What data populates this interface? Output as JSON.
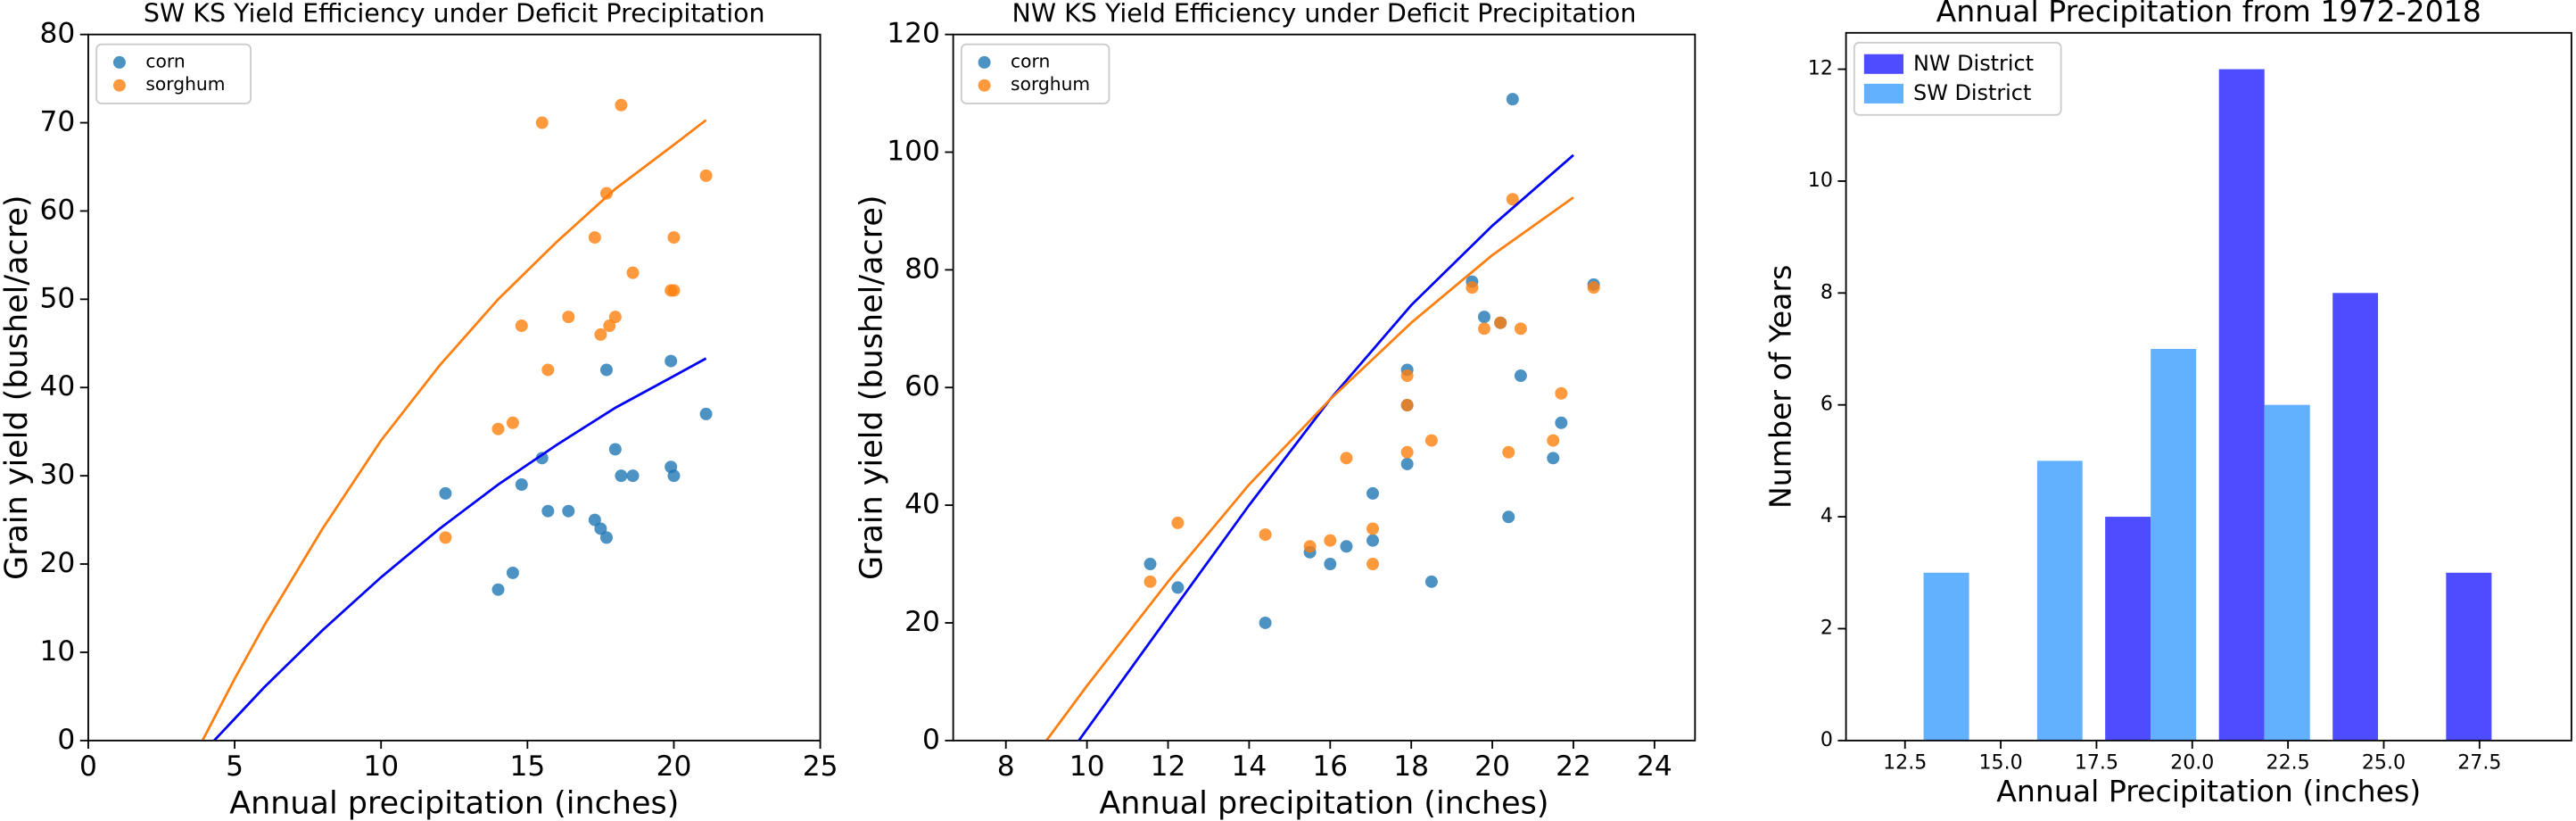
{
  "chart_data": [
    {
      "type": "scatter",
      "title": "SW KS Yield Efficiency under Deficit Precipitation",
      "xlabel": "Annual precipitation (inches)",
      "ylabel": "Grain yield (bushel/acre)",
      "xlim": [
        0,
        25
      ],
      "ylim": [
        0,
        80
      ],
      "xticks": [
        0,
        5,
        10,
        15,
        20,
        25
      ],
      "yticks": [
        0,
        10,
        20,
        30,
        40,
        50,
        60,
        70,
        80
      ],
      "legend": "upper left",
      "series": [
        {
          "name": "corn",
          "color": "#1f77b4",
          "x": [
            12.2,
            14.0,
            14.5,
            14.8,
            15.5,
            15.7,
            16.4,
            17.3,
            17.5,
            17.7,
            17.7,
            18.0,
            18.2,
            18.6,
            19.9,
            20.0,
            19.9,
            21.1
          ],
          "values": [
            28,
            17.1,
            19,
            29,
            32,
            26,
            26,
            25,
            24,
            23,
            42,
            33,
            30,
            30,
            31,
            30,
            43,
            37
          ]
        },
        {
          "name": "sorghum",
          "color": "#ff7f0e",
          "x": [
            12.2,
            14.0,
            14.5,
            14.8,
            15.5,
            15.7,
            16.4,
            17.3,
            17.5,
            17.7,
            17.8,
            18.0,
            18.2,
            18.6,
            19.9,
            20.0,
            20.0,
            21.1
          ],
          "values": [
            23,
            35.3,
            36,
            47,
            70,
            42,
            48,
            57,
            46,
            62,
            47,
            48,
            72,
            53,
            51,
            51,
            57,
            64
          ]
        }
      ],
      "fits": [
        {
          "color": "#0000ff",
          "x": [
            4.3,
            6,
            8,
            10,
            12,
            14,
            16,
            18,
            20,
            21.1
          ],
          "values": [
            0,
            6,
            12.5,
            18.5,
            24,
            29,
            33.5,
            37.7,
            41.3,
            43.3
          ]
        },
        {
          "color": "#ff7f0e",
          "x": [
            3.9,
            5,
            6,
            8,
            10,
            12,
            14,
            16,
            18,
            20,
            21.1
          ],
          "values": [
            0,
            7,
            13,
            24,
            34,
            42.5,
            50,
            56.5,
            62.5,
            67.5,
            70.3
          ]
        }
      ]
    },
    {
      "type": "scatter",
      "title": "NW KS Yield Efficiency under Deficit Precipitation",
      "xlabel": "Annual precipitation (inches)",
      "ylabel": "Grain yield (bushel/acre)",
      "xlim": [
        6.7,
        25
      ],
      "ylim": [
        0,
        120
      ],
      "xticks": [
        8,
        10,
        12,
        14,
        16,
        18,
        20,
        22,
        24
      ],
      "yticks": [
        0,
        20,
        40,
        60,
        80,
        100,
        120
      ],
      "legend": "upper left",
      "series": [
        {
          "name": "corn",
          "color": "#1f77b4",
          "x": [
            11.56,
            12.24,
            14.4,
            15.5,
            16.0,
            16.4,
            17.05,
            17.05,
            17.9,
            17.9,
            17.9,
            18.5,
            19.5,
            19.8,
            20.2,
            20.4,
            20.5,
            20.7,
            21.5,
            21.7,
            22.5
          ],
          "values": [
            30,
            26,
            20,
            32,
            30,
            33,
            34,
            42,
            47,
            63,
            57,
            27,
            78,
            72,
            71,
            38,
            109,
            62,
            48,
            54,
            77.5
          ]
        },
        {
          "name": "sorghum",
          "color": "#ff7f0e",
          "x": [
            11.56,
            12.24,
            14.4,
            15.5,
            16.0,
            16.4,
            17.05,
            17.05,
            17.9,
            17.9,
            17.9,
            18.5,
            19.5,
            19.8,
            20.2,
            20.4,
            20.5,
            20.7,
            21.5,
            21.7,
            22.5
          ],
          "values": [
            27,
            37,
            35,
            33,
            34,
            48,
            36,
            30,
            62,
            57,
            49,
            51,
            77,
            70,
            71,
            49,
            92,
            70,
            51,
            59,
            77
          ]
        }
      ],
      "fits": [
        {
          "color": "#0000ff",
          "x": [
            9.8,
            12,
            14,
            16,
            18,
            20,
            22
          ],
          "values": [
            0,
            21,
            40,
            58,
            74,
            87.5,
            99.5
          ]
        },
        {
          "color": "#ff7f0e",
          "x": [
            9,
            10,
            12,
            14,
            16,
            18,
            20,
            22
          ],
          "values": [
            0,
            9.3,
            27,
            43.5,
            58,
            71,
            82.5,
            92.3
          ]
        }
      ]
    },
    {
      "type": "histogram",
      "title": "Annual Precipitation from 1972-2018",
      "xlabel": "Annual Precipitation (inches)",
      "ylabel": "Number of Years",
      "xlim": [
        10.96,
        29.9
      ],
      "ylim": [
        0,
        12.65
      ],
      "xticks": [
        12.5,
        {
          "value": 15,
          "label": "15.0"
        },
        17.5,
        {
          "value": 20,
          "label": "20.0"
        },
        22.5,
        {
          "value": 25,
          "label": "25.0"
        },
        27.5
      ],
      "yticks": [
        0,
        2,
        4,
        6,
        8,
        10,
        12
      ],
      "legend": "upper left",
      "bins": [
        11.5,
        14.47,
        17.43,
        20.4,
        23.37,
        26.33,
        29.3
      ],
      "series": [
        {
          "name": "NW District",
          "color": "#4d4dff",
          "values": [
            0,
            0,
            4,
            12,
            8,
            3
          ]
        },
        {
          "name": "SW District",
          "color": "#61b1ff",
          "values": [
            3,
            5,
            7,
            6,
            0,
            0
          ]
        }
      ]
    }
  ]
}
